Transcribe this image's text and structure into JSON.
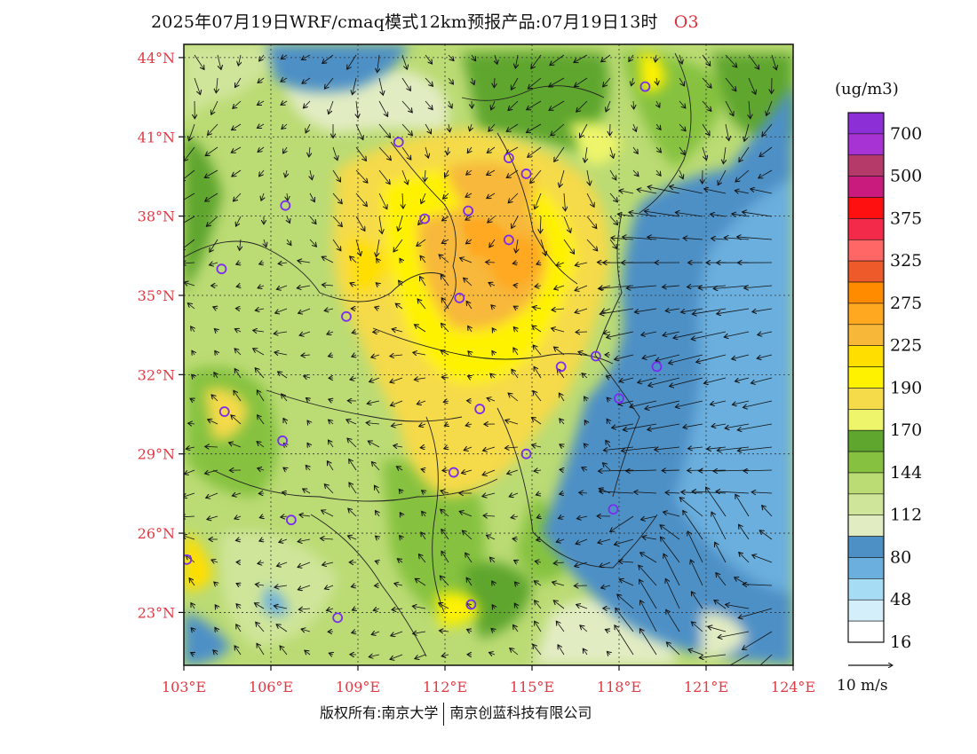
{
  "header": {
    "title": "2025年07月19日WRF/cmaq模式12km预报产品:07月19日13时",
    "species": "O3"
  },
  "map": {
    "lat_labels": [
      "44°N",
      "41°N",
      "38°N",
      "35°N",
      "32°N",
      "29°N",
      "26°N",
      "23°N"
    ],
    "lon_labels": [
      "103°E",
      "106°E",
      "109°E",
      "112°E",
      "115°E",
      "118°E",
      "121°E",
      "124°E"
    ],
    "lat_values": [
      44,
      41,
      38,
      35,
      32,
      29,
      26,
      23
    ],
    "lon_values": [
      103,
      106,
      109,
      112,
      115,
      118,
      121,
      124
    ],
    "extent": {
      "lon_min": 103,
      "lon_max": 124,
      "lat_min": 21,
      "lat_max": 44.5
    },
    "cities": [
      {
        "lon": 118.9,
        "lat": 42.9
      },
      {
        "lon": 110.4,
        "lat": 40.8
      },
      {
        "lon": 114.2,
        "lat": 40.2
      },
      {
        "lon": 114.8,
        "lat": 39.6
      },
      {
        "lon": 106.5,
        "lat": 38.4
      },
      {
        "lon": 111.3,
        "lat": 37.9
      },
      {
        "lon": 112.8,
        "lat": 38.2
      },
      {
        "lon": 114.2,
        "lat": 37.1
      },
      {
        "lon": 104.3,
        "lat": 36.0
      },
      {
        "lon": 112.5,
        "lat": 34.9
      },
      {
        "lon": 108.6,
        "lat": 34.2
      },
      {
        "lon": 116.0,
        "lat": 32.3
      },
      {
        "lon": 117.2,
        "lat": 32.7
      },
      {
        "lon": 119.3,
        "lat": 32.3
      },
      {
        "lon": 118.0,
        "lat": 31.1
      },
      {
        "lon": 104.4,
        "lat": 30.6
      },
      {
        "lon": 113.2,
        "lat": 30.7
      },
      {
        "lon": 106.4,
        "lat": 29.5
      },
      {
        "lon": 114.8,
        "lat": 29.0
      },
      {
        "lon": 112.3,
        "lat": 28.3
      },
      {
        "lon": 117.8,
        "lat": 26.9
      },
      {
        "lon": 106.7,
        "lat": 26.5
      },
      {
        "lon": 103.1,
        "lat": 25.0
      },
      {
        "lon": 108.3,
        "lat": 22.8
      },
      {
        "lon": 112.9,
        "lat": 23.3
      }
    ]
  },
  "legend": {
    "unit": "(ug/m3)",
    "labels": [
      "700",
      "500",
      "375",
      "325",
      "275",
      "225",
      "190",
      "170",
      "144",
      "112",
      "80",
      "48",
      "16"
    ],
    "colors": [
      "#8d2fd6",
      "#a833d4",
      "#b53a6a",
      "#c91a7e",
      "#ff1010",
      "#f42a4a",
      "#ff6666",
      "#ee5a2a",
      "#ff8c00",
      "#ffa820",
      "#f7b83a",
      "#ffde00",
      "#fff200",
      "#f5da4a",
      "#eef56a",
      "#5fa62e",
      "#86c240",
      "#bbdb74",
      "#cfe59a",
      "#e2ecc2",
      "#4d90c6",
      "#6aafde",
      "#a6dcf4",
      "#d4eefa",
      "#ffffff"
    ]
  },
  "vector": {
    "label": "10 m/s"
  },
  "footer": {
    "left": "版权所有:南京大学",
    "right": "南京创蓝科技有限公司"
  },
  "colors": {
    "tick": "#e03a44",
    "city": "#7a2cf0",
    "land_base": "#bbdb74",
    "sea": "#4d90c6"
  }
}
